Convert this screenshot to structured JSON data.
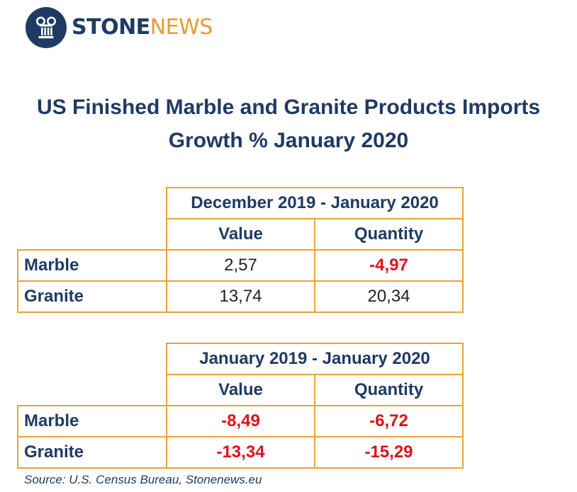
{
  "logo": {
    "stone": "STONE",
    "news": "NEWS",
    "colors": {
      "primary": "#1f3b63",
      "accent": "#e39b3a"
    }
  },
  "title": {
    "line1": "US Finished Marble and Granite Products Imports",
    "line2": "Growth % January 2020"
  },
  "tables": [
    {
      "period": "December 2019 - January 2020",
      "headers": {
        "value": "Value",
        "quantity": "Quantity"
      },
      "rows": [
        {
          "label": "Marble",
          "value": "2,57",
          "quantity": "-4,97"
        },
        {
          "label": "Granite",
          "value": "13,74",
          "quantity": "20,34"
        }
      ]
    },
    {
      "period": "January 2019 - January 2020",
      "headers": {
        "value": "Value",
        "quantity": "Quantity"
      },
      "rows": [
        {
          "label": "Marble",
          "value": "-8,49",
          "quantity": "-6,72"
        },
        {
          "label": "Granite",
          "value": "-13,34",
          "quantity": "-15,29"
        }
      ]
    }
  ],
  "colors": {
    "text": "#1f3b63",
    "border": "#e9a23b",
    "negative": "#e10f1a"
  },
  "source": "Source: U.S. Census Bureau, Stonenews.eu"
}
